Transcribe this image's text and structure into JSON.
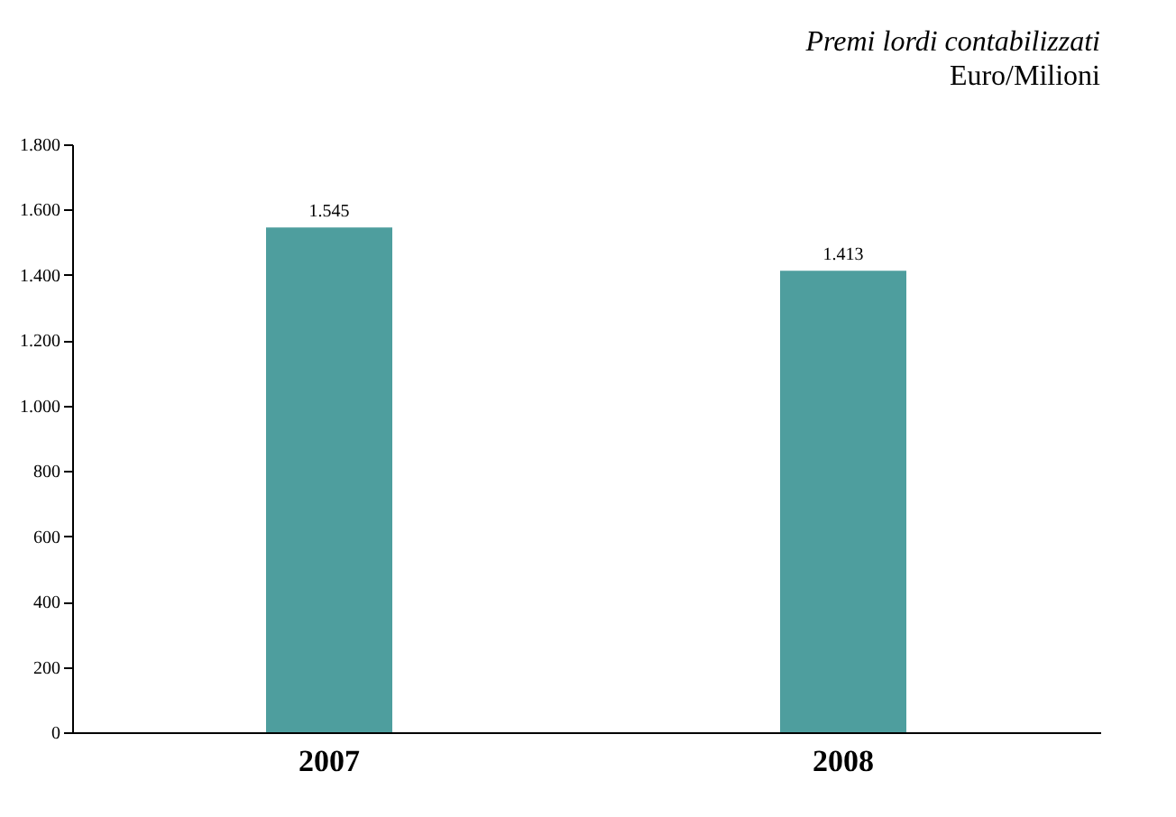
{
  "chart_data": {
    "type": "bar",
    "title": "Premi lordi contabilizzati",
    "subtitle": "Euro/Milioni",
    "categories": [
      "2007",
      "2008"
    ],
    "values": [
      1545,
      1413
    ],
    "value_labels": [
      "1.545",
      "1.413"
    ],
    "color": "#4e9e9e",
    "ylim": [
      0,
      1800
    ],
    "yticks": [
      0,
      200,
      400,
      600,
      800,
      {
        "value": 1000,
        "label": "1.000"
      },
      {
        "value": 1200,
        "label": "1.200"
      },
      {
        "value": 1400,
        "label": "1.400"
      },
      {
        "value": 1600,
        "label": "1.600"
      },
      {
        "value": 1800,
        "label": "1.800"
      }
    ],
    "grid": false
  }
}
